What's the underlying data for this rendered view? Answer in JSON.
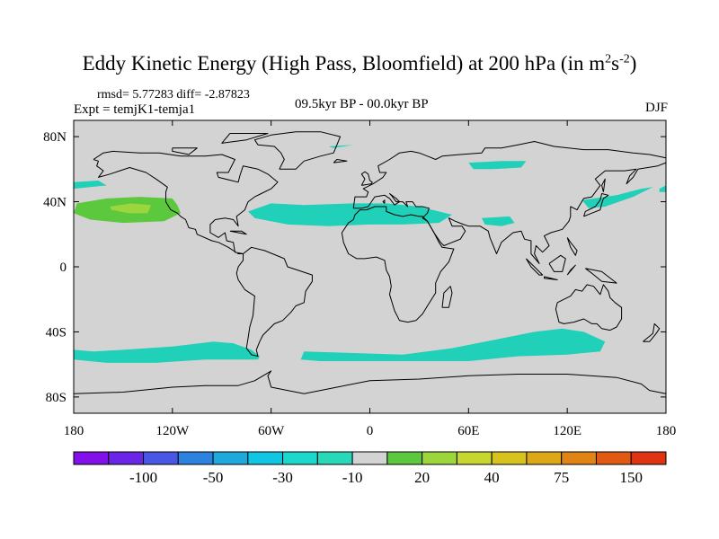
{
  "header": {
    "title_main": "Eddy Kinetic Energy (High Pass, Bloomfield) at 200 hPa (in m",
    "title_sup1": "2",
    "title_mid": "s",
    "title_sup2": "-2",
    "title_end": ")",
    "stats": "rmsd= 5.77283 diff= -2.87823",
    "expt": "Expt = temjK1-temja1",
    "period": "09.5kyr BP - 00.0kyr BP",
    "season": "DJF"
  },
  "chart_data": {
    "type": "heatmap",
    "projection": "cylindrical equidistant (lon -180..180, lat -90..90)",
    "background_fill": "#d3d3d3",
    "xlim": [
      -180,
      180
    ],
    "ylim": [
      -90,
      90
    ],
    "x_ticks": [
      {
        "value": -180,
        "label": "180"
      },
      {
        "value": -120,
        "label": "120W"
      },
      {
        "value": -60,
        "label": "60W"
      },
      {
        "value": 0,
        "label": "0"
      },
      {
        "value": 60,
        "label": "60E"
      },
      {
        "value": 120,
        "label": "120E"
      },
      {
        "value": 180,
        "label": "180"
      }
    ],
    "y_ticks": [
      {
        "value": 80,
        "label": "80N"
      },
      {
        "value": 40,
        "label": "40N"
      },
      {
        "value": 0,
        "label": "0"
      },
      {
        "value": -40,
        "label": "40S"
      },
      {
        "value": -80,
        "label": "80S"
      }
    ],
    "anomaly_regions": [
      {
        "name": "Southern Hemisphere storm track (Pacific)",
        "level_range": [
          -30,
          -10
        ],
        "color": "#20d0b8",
        "outline": [
          [
            -180,
            -51
          ],
          [
            -168,
            -52
          ],
          [
            -150,
            -51
          ],
          [
            -120,
            -49
          ],
          [
            -95,
            -46
          ],
          [
            -83,
            -47
          ],
          [
            -72,
            -51
          ],
          [
            -67,
            -55
          ],
          [
            -68,
            -57
          ],
          [
            -80,
            -57
          ],
          [
            -100,
            -57
          ],
          [
            -130,
            -59
          ],
          [
            -160,
            -59
          ],
          [
            -180,
            -57
          ]
        ]
      },
      {
        "name": "Southern Hemisphere storm track (Atlantic-Indian)",
        "level_range": [
          -30,
          -10
        ],
        "color": "#20d0b8",
        "outline": [
          [
            -40,
            -52
          ],
          [
            -10,
            -53
          ],
          [
            20,
            -54
          ],
          [
            50,
            -50
          ],
          [
            80,
            -44
          ],
          [
            100,
            -40
          ],
          [
            117,
            -38
          ],
          [
            130,
            -40
          ],
          [
            143,
            -46
          ],
          [
            140,
            -52
          ],
          [
            120,
            -54
          ],
          [
            90,
            -55
          ],
          [
            60,
            -58
          ],
          [
            30,
            -58
          ],
          [
            0,
            -58
          ],
          [
            -30,
            -58
          ],
          [
            -42,
            -57
          ]
        ]
      },
      {
        "name": "North Atlantic-Mediterranean band",
        "level_range": [
          -30,
          -10
        ],
        "color": "#20d0b8",
        "outline": [
          [
            -74,
            34
          ],
          [
            -60,
            39
          ],
          [
            -40,
            38
          ],
          [
            -10,
            39
          ],
          [
            10,
            39
          ],
          [
            30,
            37
          ],
          [
            50,
            32
          ],
          [
            42,
            27
          ],
          [
            20,
            26
          ],
          [
            0,
            26
          ],
          [
            -25,
            25
          ],
          [
            -50,
            26
          ],
          [
            -70,
            30
          ]
        ]
      },
      {
        "name": "Northeast Asia band",
        "level_range": [
          -30,
          -10
        ],
        "color": "#20d0b8",
        "outline": [
          [
            129,
            41
          ],
          [
            150,
            44
          ],
          [
            165,
            48
          ],
          [
            172,
            49
          ],
          [
            160,
            43
          ],
          [
            143,
            37
          ],
          [
            133,
            36
          ]
        ]
      },
      {
        "name": "Siberia patch",
        "level_range": [
          -30,
          -10
        ],
        "color": "#20d0b8",
        "outline": [
          [
            60,
            64
          ],
          [
            80,
            65
          ],
          [
            95,
            65
          ],
          [
            92,
            61
          ],
          [
            75,
            60
          ],
          [
            63,
            60
          ]
        ]
      },
      {
        "name": "Arabian Sea patch",
        "level_range": [
          -30,
          -10
        ],
        "color": "#20d0b8",
        "outline": [
          [
            68,
            30
          ],
          [
            85,
            31
          ],
          [
            88,
            27
          ],
          [
            80,
            25
          ],
          [
            70,
            26
          ]
        ]
      },
      {
        "name": "North Pacific west edge",
        "level_range": [
          -30,
          -10
        ],
        "color": "#20d0b8",
        "outline": [
          [
            -180,
            52
          ],
          [
            -165,
            53
          ],
          [
            -160,
            50
          ],
          [
            -180,
            48
          ]
        ]
      },
      {
        "name": "North Pacific east edge",
        "level_range": [
          -30,
          -10
        ],
        "color": "#20d0b8",
        "outline": [
          [
            176,
            48
          ],
          [
            180,
            50
          ],
          [
            180,
            46
          ],
          [
            176,
            46
          ]
        ]
      },
      {
        "name": "Greenland sliver",
        "level_range": [
          -30,
          -10
        ],
        "color": "#20d0b8",
        "outline": [
          [
            -25,
            74
          ],
          [
            -10,
            75
          ],
          [
            -22,
            73
          ]
        ]
      },
      {
        "name": "Eastern North Pacific positive anomaly",
        "level_range": [
          10,
          20
        ],
        "color": "#5cc83e",
        "outline": [
          [
            -178,
            39
          ],
          [
            -160,
            42
          ],
          [
            -140,
            43
          ],
          [
            -120,
            42
          ],
          [
            -117,
            38
          ],
          [
            -115,
            33
          ],
          [
            -125,
            28
          ],
          [
            -150,
            27
          ],
          [
            -170,
            29
          ],
          [
            -180,
            33
          ]
        ]
      },
      {
        "name": "Eastern North Pacific positive anomaly core",
        "level_range": [
          20,
          30
        ],
        "color": "#9dd63c",
        "outline": [
          [
            -158,
            37
          ],
          [
            -145,
            39
          ],
          [
            -133,
            38
          ],
          [
            -135,
            33
          ],
          [
            -147,
            33
          ],
          [
            -157,
            35
          ]
        ]
      }
    ],
    "colorbar": {
      "colors": [
        "#8210e8",
        "#6a26e6",
        "#4a56e4",
        "#2c82de",
        "#1ea8dc",
        "#10c6e2",
        "#1cd8cc",
        "#28d8b8",
        "#d3d3d3",
        "#5cc83e",
        "#9dd63c",
        "#c8d632",
        "#d8c220",
        "#dca818",
        "#e08416",
        "#e05a14",
        "#de3412"
      ],
      "tick_labels": [
        "-100",
        "-50",
        "-30",
        "-10",
        "20",
        "40",
        "75",
        "150"
      ],
      "tick_after_box": [
        2,
        4,
        6,
        8,
        10,
        12,
        14,
        16
      ]
    }
  }
}
